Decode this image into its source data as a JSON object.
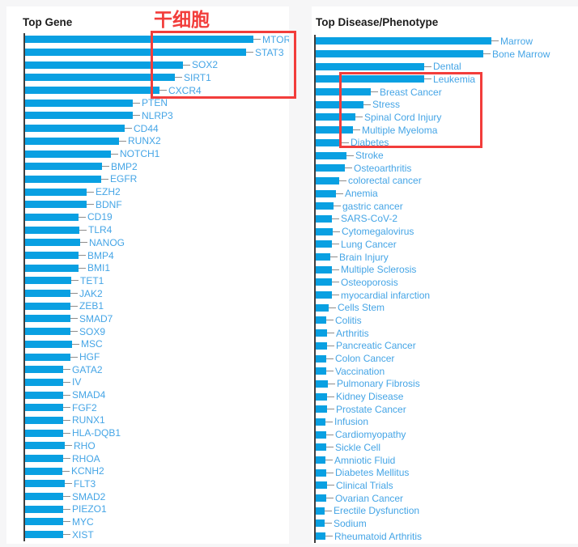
{
  "colors": {
    "bar": "#09a0e2",
    "label": "#45a5e6",
    "axis": "#3e3e3e",
    "tick": "#8c8c8c",
    "annotation_red": "#f23d3b",
    "panel_bg": "#ffffff",
    "page_bg": "#f6f6f7"
  },
  "annotations": {
    "stem_cell_label": "干细胞",
    "highlighted_genes": [
      "MTOR",
      "STAT3",
      "SOX2",
      "SIRT1",
      "CXCR4"
    ],
    "highlighted_diseases": [
      "Leukemia",
      "Breast Cancer",
      "Stress",
      "Spinal Cord Injury",
      "Multiple Myeloma",
      "Diabetes"
    ]
  },
  "chart_data": [
    {
      "type": "bar",
      "orientation": "horizontal",
      "title": "Top Gene",
      "legend_position": "none",
      "grid": false,
      "value_units": "relative bar length (px, no numeric axis shown)",
      "categories": [
        "MTOR",
        "STAT3",
        "SOX2",
        "SIRT1",
        "CXCR4",
        "PTEN",
        "NLRP3",
        "CD44",
        "RUNX2",
        "NOTCH1",
        "BMP2",
        "EGFR",
        "EZH2",
        "BDNF",
        "CD19",
        "TLR4",
        "NANOG",
        "BMP4",
        "BMI1",
        "TET1",
        "JAK2",
        "ZEB1",
        "SMAD7",
        "SOX9",
        "MSC",
        "HGF",
        "GATA2",
        "IV",
        "SMAD4",
        "FGF2",
        "RUNX1",
        "HLA-DQB1",
        "RHO",
        "RHOA",
        "KCNH2",
        "FLT3",
        "SMAD2",
        "PIEZO1",
        "MYC",
        "XIST"
      ],
      "values": [
        282,
        273,
        195,
        185,
        166,
        133,
        133,
        123,
        116,
        106,
        95,
        94,
        76,
        76,
        66,
        67,
        68,
        66,
        66,
        57,
        56,
        56,
        56,
        56,
        58,
        56,
        47,
        47,
        47,
        47,
        47,
        47,
        49,
        47,
        46,
        49,
        47,
        47,
        47,
        47
      ]
    },
    {
      "type": "bar",
      "orientation": "horizontal",
      "title": "Top Disease/Phenotype",
      "legend_position": "none",
      "grid": false,
      "value_units": "relative bar length (px, no numeric axis shown)",
      "categories": [
        "Marrow",
        "Bone Marrow",
        "Dental",
        "Leukemia",
        "Breast Cancer",
        "Stress",
        "Spinal Cord Injury",
        "Multiple Myeloma",
        "Diabetes",
        "Stroke",
        "Osteoarthritis",
        "colorectal cancer",
        "Anemia",
        "gastric cancer",
        "SARS-CoV-2",
        "Cytomegalovirus",
        "Lung Cancer",
        "Brain Injury",
        "Multiple Sclerosis",
        "Osteoporosis",
        "myocardial infarction",
        "Cells Stem",
        "Colitis",
        "Arthritis",
        "Pancreatic Cancer",
        "Colon Cancer",
        "Vaccination",
        "Pulmonary Fibrosis",
        "Kidney Disease",
        "Prostate Cancer",
        "Infusion",
        "Cardiomyopathy",
        "Sickle Cell",
        "Amniotic Fluid",
        "Diabetes Mellitus",
        "Clinical Trials",
        "Ovarian Cancer",
        "Erectile Dysfunction",
        "Sodium",
        "Rheumatoid Arthritis"
      ],
      "values": [
        217,
        207,
        134,
        134,
        68,
        59,
        49,
        46,
        32,
        38,
        36,
        29,
        25,
        22,
        20,
        21,
        20,
        18,
        20,
        20,
        20,
        16,
        13,
        14,
        14,
        13,
        13,
        15,
        14,
        14,
        12,
        13,
        13,
        12,
        13,
        14,
        13,
        11,
        11,
        12
      ]
    }
  ]
}
